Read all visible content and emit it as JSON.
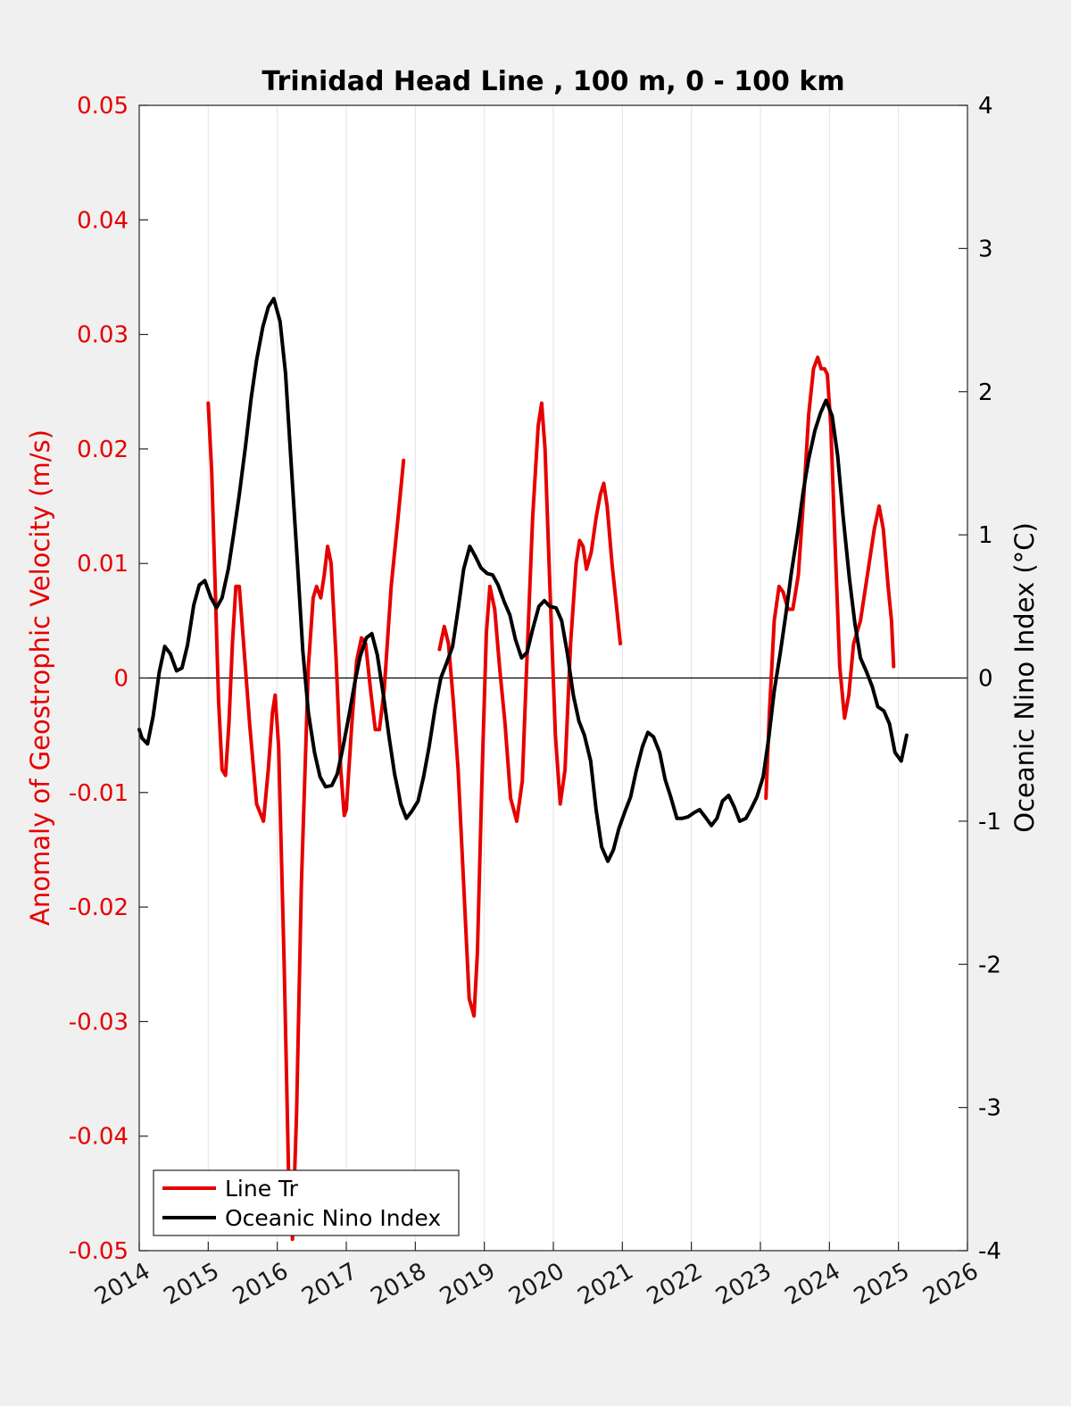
{
  "chart_data": {
    "type": "line",
    "title": "Trinidad Head Line , 100 m, 0 - 100 km",
    "xlabel": "",
    "ylabel_left": "Anomaly of Geostrophic Velocity (m/s)",
    "ylabel_right": "Oceanic Nino Index (°C)",
    "xlim": [
      2014,
      2026
    ],
    "ylim_left": [
      -0.05,
      0.05
    ],
    "ylim_right": [
      -4,
      4
    ],
    "x_ticks": [
      "2014",
      "2015",
      "2016",
      "2017",
      "2018",
      "2019",
      "2020",
      "2021",
      "2022",
      "2023",
      "2024",
      "2025",
      "2026"
    ],
    "y_ticks_left": [
      "0.05",
      "0.04",
      "0.03",
      "0.02",
      "0.01",
      "0",
      "-0.01",
      "-0.02",
      "-0.03",
      "-0.04",
      "-0.05"
    ],
    "y_ticks_right": [
      "4",
      "3",
      "2",
      "1",
      "0",
      "-1",
      "-2",
      "-3",
      "-4"
    ],
    "grid": "vertical",
    "legend_position": "bottom-left",
    "colors": {
      "line_tr": "#e60000",
      "oni": "#000000",
      "left_axis": "#e60000"
    },
    "series": [
      {
        "name": "Line Tr",
        "axis": "left",
        "color": "#e60000",
        "segments": [
          [
            [
              2015.0,
              0.024
            ],
            [
              2015.05,
              0.018
            ],
            [
              2015.1,
              0.008
            ],
            [
              2015.15,
              -0.002
            ],
            [
              2015.2,
              -0.008
            ],
            [
              2015.25,
              -0.0085
            ],
            [
              2015.3,
              -0.004
            ],
            [
              2015.35,
              0.003
            ],
            [
              2015.4,
              0.008
            ],
            [
              2015.45,
              0.008
            ],
            [
              2015.5,
              0.004
            ],
            [
              2015.6,
              -0.004
            ],
            [
              2015.7,
              -0.011
            ],
            [
              2015.8,
              -0.0125
            ],
            [
              2015.87,
              -0.008
            ],
            [
              2015.93,
              -0.003
            ],
            [
              2015.97,
              -0.0015
            ],
            [
              2016.02,
              -0.006
            ],
            [
              2016.1,
              -0.025
            ],
            [
              2016.17,
              -0.045
            ],
            [
              2016.22,
              -0.049
            ],
            [
              2016.28,
              -0.038
            ],
            [
              2016.35,
              -0.018
            ],
            [
              2016.45,
              0.001
            ],
            [
              2016.52,
              0.007
            ],
            [
              2016.57,
              0.008
            ],
            [
              2016.63,
              0.007
            ],
            [
              2016.68,
              0.009
            ],
            [
              2016.73,
              0.0115
            ],
            [
              2016.78,
              0.01
            ],
            [
              2016.85,
              0.002
            ],
            [
              2016.92,
              -0.008
            ],
            [
              2016.97,
              -0.012
            ],
            [
              2017.0,
              -0.0115
            ],
            [
              2017.08,
              -0.004
            ],
            [
              2017.15,
              0.0015
            ],
            [
              2017.22,
              0.0035
            ],
            [
              2017.28,
              0.003
            ],
            [
              2017.35,
              -0.001
            ],
            [
              2017.42,
              -0.0045
            ],
            [
              2017.48,
              -0.0045
            ],
            [
              2017.55,
              -0.001
            ],
            [
              2017.65,
              0.008
            ],
            [
              2017.75,
              0.014
            ],
            [
              2017.83,
              0.019
            ]
          ],
          [
            [
              2018.35,
              0.0025
            ],
            [
              2018.42,
              0.0045
            ],
            [
              2018.48,
              0.003
            ],
            [
              2018.55,
              -0.002
            ],
            [
              2018.62,
              -0.008
            ],
            [
              2018.7,
              -0.018
            ],
            [
              2018.78,
              -0.028
            ],
            [
              2018.85,
              -0.0295
            ],
            [
              2018.9,
              -0.024
            ],
            [
              2018.97,
              -0.008
            ],
            [
              2019.03,
              0.004
            ],
            [
              2019.08,
              0.008
            ],
            [
              2019.15,
              0.006
            ],
            [
              2019.22,
              0.001
            ],
            [
              2019.3,
              -0.004
            ],
            [
              2019.38,
              -0.0105
            ],
            [
              2019.47,
              -0.0125
            ],
            [
              2019.55,
              -0.009
            ],
            [
              2019.62,
              0.002
            ],
            [
              2019.7,
              0.014
            ],
            [
              2019.78,
              0.022
            ],
            [
              2019.83,
              0.024
            ],
            [
              2019.88,
              0.02
            ],
            [
              2019.95,
              0.008
            ],
            [
              2020.03,
              -0.005
            ],
            [
              2020.1,
              -0.011
            ],
            [
              2020.17,
              -0.008
            ],
            [
              2020.25,
              0.003
            ],
            [
              2020.33,
              0.01
            ],
            [
              2020.38,
              0.012
            ],
            [
              2020.43,
              0.0115
            ],
            [
              2020.48,
              0.0095
            ],
            [
              2020.55,
              0.011
            ],
            [
              2020.62,
              0.014
            ],
            [
              2020.68,
              0.016
            ],
            [
              2020.73,
              0.017
            ],
            [
              2020.78,
              0.015
            ],
            [
              2020.85,
              0.01
            ],
            [
              2020.92,
              0.006
            ],
            [
              2020.97,
              0.003
            ]
          ],
          [
            [
              2023.08,
              -0.0105
            ],
            [
              2023.13,
              -0.003
            ],
            [
              2023.2,
              0.005
            ],
            [
              2023.27,
              0.008
            ],
            [
              2023.33,
              0.0075
            ],
            [
              2023.4,
              0.006
            ],
            [
              2023.47,
              0.006
            ],
            [
              2023.55,
              0.009
            ],
            [
              2023.63,
              0.016
            ],
            [
              2023.7,
              0.023
            ],
            [
              2023.77,
              0.027
            ],
            [
              2023.83,
              0.028
            ],
            [
              2023.88,
              0.027
            ],
            [
              2023.93,
              0.027
            ],
            [
              2023.97,
              0.0265
            ],
            [
              2024.02,
              0.022
            ],
            [
              2024.08,
              0.012
            ],
            [
              2024.15,
              0.001
            ],
            [
              2024.22,
              -0.0035
            ],
            [
              2024.28,
              -0.0015
            ],
            [
              2024.35,
              0.003
            ],
            [
              2024.45,
              0.005
            ],
            [
              2024.55,
              0.009
            ],
            [
              2024.65,
              0.013
            ],
            [
              2024.72,
              0.015
            ],
            [
              2024.78,
              0.013
            ],
            [
              2024.85,
              0.008
            ],
            [
              2024.9,
              0.005
            ],
            [
              2024.93,
              0.001
            ]
          ]
        ]
      },
      {
        "name": "Oceanic Nino Index",
        "axis": "right",
        "color": "#000000",
        "points": [
          [
            2014.0,
            -0.36
          ],
          [
            2014.04,
            -0.42
          ],
          [
            2014.12,
            -0.46
          ],
          [
            2014.2,
            -0.27
          ],
          [
            2014.29,
            0.04
          ],
          [
            2014.37,
            0.22
          ],
          [
            2014.45,
            0.17
          ],
          [
            2014.54,
            0.05
          ],
          [
            2014.62,
            0.07
          ],
          [
            2014.7,
            0.23
          ],
          [
            2014.79,
            0.51
          ],
          [
            2014.87,
            0.65
          ],
          [
            2014.95,
            0.68
          ],
          [
            2015.04,
            0.56
          ],
          [
            2015.12,
            0.49
          ],
          [
            2015.2,
            0.56
          ],
          [
            2015.29,
            0.76
          ],
          [
            2015.37,
            1.01
          ],
          [
            2015.45,
            1.28
          ],
          [
            2015.54,
            1.62
          ],
          [
            2015.62,
            1.95
          ],
          [
            2015.7,
            2.22
          ],
          [
            2015.79,
            2.45
          ],
          [
            2015.87,
            2.59
          ],
          [
            2015.95,
            2.65
          ],
          [
            2016.04,
            2.49
          ],
          [
            2016.12,
            2.13
          ],
          [
            2016.2,
            1.51
          ],
          [
            2016.29,
            0.82
          ],
          [
            2016.37,
            0.19
          ],
          [
            2016.45,
            -0.24
          ],
          [
            2016.54,
            -0.52
          ],
          [
            2016.62,
            -0.69
          ],
          [
            2016.7,
            -0.76
          ],
          [
            2016.79,
            -0.75
          ],
          [
            2016.87,
            -0.67
          ],
          [
            2016.95,
            -0.49
          ],
          [
            2017.04,
            -0.26
          ],
          [
            2017.12,
            -0.04
          ],
          [
            2017.2,
            0.15
          ],
          [
            2017.29,
            0.28
          ],
          [
            2017.37,
            0.31
          ],
          [
            2017.45,
            0.16
          ],
          [
            2017.54,
            -0.13
          ],
          [
            2017.62,
            -0.41
          ],
          [
            2017.7,
            -0.67
          ],
          [
            2017.79,
            -0.88
          ],
          [
            2017.87,
            -0.98
          ],
          [
            2017.95,
            -0.93
          ],
          [
            2018.04,
            -0.86
          ],
          [
            2018.12,
            -0.69
          ],
          [
            2018.2,
            -0.48
          ],
          [
            2018.29,
            -0.2
          ],
          [
            2018.37,
            0.0
          ],
          [
            2018.45,
            0.1
          ],
          [
            2018.54,
            0.22
          ],
          [
            2018.62,
            0.48
          ],
          [
            2018.7,
            0.76
          ],
          [
            2018.79,
            0.92
          ],
          [
            2018.87,
            0.85
          ],
          [
            2018.95,
            0.77
          ],
          [
            2019.04,
            0.73
          ],
          [
            2019.12,
            0.72
          ],
          [
            2019.2,
            0.65
          ],
          [
            2019.29,
            0.53
          ],
          [
            2019.37,
            0.44
          ],
          [
            2019.45,
            0.27
          ],
          [
            2019.54,
            0.14
          ],
          [
            2019.62,
            0.18
          ],
          [
            2019.7,
            0.34
          ],
          [
            2019.79,
            0.5
          ],
          [
            2019.87,
            0.54
          ],
          [
            2019.95,
            0.5
          ],
          [
            2020.04,
            0.49
          ],
          [
            2020.12,
            0.4
          ],
          [
            2020.2,
            0.18
          ],
          [
            2020.29,
            -0.12
          ],
          [
            2020.37,
            -0.3
          ],
          [
            2020.45,
            -0.4
          ],
          [
            2020.54,
            -0.58
          ],
          [
            2020.62,
            -0.92
          ],
          [
            2020.7,
            -1.18
          ],
          [
            2020.79,
            -1.28
          ],
          [
            2020.87,
            -1.2
          ],
          [
            2020.95,
            -1.05
          ],
          [
            2021.04,
            -0.93
          ],
          [
            2021.12,
            -0.83
          ],
          [
            2021.2,
            -0.65
          ],
          [
            2021.29,
            -0.48
          ],
          [
            2021.37,
            -0.38
          ],
          [
            2021.45,
            -0.41
          ],
          [
            2021.54,
            -0.52
          ],
          [
            2021.62,
            -0.71
          ],
          [
            2021.7,
            -0.83
          ],
          [
            2021.79,
            -0.98
          ],
          [
            2021.87,
            -0.98
          ],
          [
            2021.95,
            -0.97
          ],
          [
            2022.04,
            -0.94
          ],
          [
            2022.12,
            -0.92
          ],
          [
            2022.2,
            -0.97
          ],
          [
            2022.29,
            -1.03
          ],
          [
            2022.37,
            -0.98
          ],
          [
            2022.45,
            -0.86
          ],
          [
            2022.54,
            -0.82
          ],
          [
            2022.62,
            -0.9
          ],
          [
            2022.7,
            -1.0
          ],
          [
            2022.79,
            -0.98
          ],
          [
            2022.87,
            -0.91
          ],
          [
            2022.95,
            -0.83
          ],
          [
            2023.04,
            -0.69
          ],
          [
            2023.12,
            -0.42
          ],
          [
            2023.2,
            -0.09
          ],
          [
            2023.29,
            0.18
          ],
          [
            2023.37,
            0.45
          ],
          [
            2023.45,
            0.74
          ],
          [
            2023.54,
            1.02
          ],
          [
            2023.62,
            1.3
          ],
          [
            2023.7,
            1.53
          ],
          [
            2023.79,
            1.73
          ],
          [
            2023.87,
            1.85
          ],
          [
            2023.95,
            1.94
          ],
          [
            2024.04,
            1.83
          ],
          [
            2024.12,
            1.55
          ],
          [
            2024.2,
            1.12
          ],
          [
            2024.29,
            0.69
          ],
          [
            2024.37,
            0.38
          ],
          [
            2024.45,
            0.14
          ],
          [
            2024.54,
            0.04
          ],
          [
            2024.62,
            -0.06
          ],
          [
            2024.7,
            -0.2
          ],
          [
            2024.79,
            -0.23
          ],
          [
            2024.87,
            -0.32
          ],
          [
            2024.95,
            -0.52
          ],
          [
            2025.04,
            -0.58
          ],
          [
            2025.12,
            -0.4
          ]
        ]
      }
    ]
  }
}
